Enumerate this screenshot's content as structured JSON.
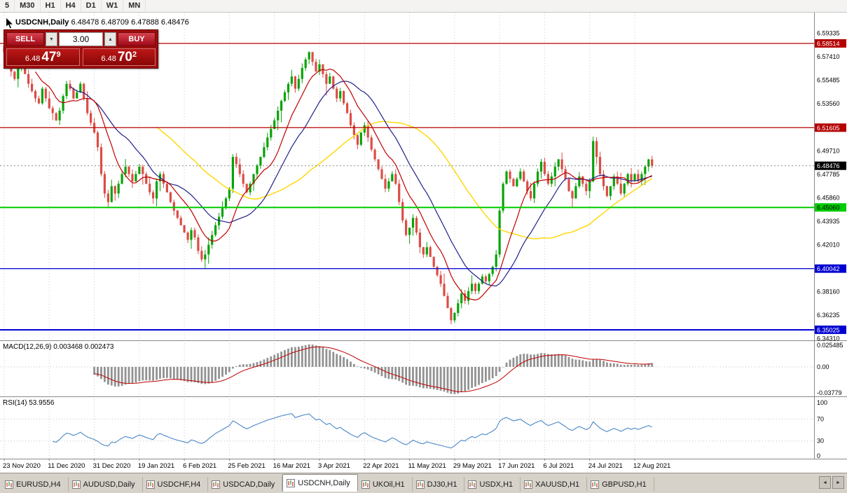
{
  "toolbar": {
    "timeframes": [
      {
        "label": "5"
      },
      {
        "label": "M30"
      },
      {
        "label": "H1"
      },
      {
        "label": "H4"
      },
      {
        "label": "D1"
      },
      {
        "label": "W1"
      },
      {
        "label": "MN"
      }
    ]
  },
  "chart": {
    "symbol_period": "USDCNH,Daily",
    "ohlc_readout": "6.48478 6.48709 6.47888 6.48476"
  },
  "one_click": {
    "sell_label": "SELL",
    "buy_label": "BUY",
    "volume": "3.00",
    "sell_price": {
      "base": "6.48",
      "pips": "47",
      "pt": "9"
    },
    "buy_price": {
      "base": "6.48",
      "pips": "70",
      "pt": "2"
    }
  },
  "chart_data": {
    "type": "candlestick",
    "symbol": "USDCNH",
    "timeframe": "Daily",
    "x_labels": [
      "23 Nov 2020",
      "11 Dec 2020",
      "31 Dec 2020",
      "19 Jan 2021",
      "6 Feb 2021",
      "25 Feb 2021",
      "16 Mar 2021",
      "3 Apr 2021",
      "22 Apr 2021",
      "11 May 2021",
      "29 May 2021",
      "17 Jun 2021",
      "6 Jul 2021",
      "24 Jul 2021",
      "12 Aug 2021"
    ],
    "label_step": 13,
    "open_first": 6.583,
    "closes": [
      6.578,
      6.585,
      6.562,
      6.556,
      6.568,
      6.572,
      6.56,
      6.552,
      6.546,
      6.54,
      6.536,
      6.548,
      6.54,
      6.532,
      6.528,
      6.522,
      6.53,
      6.542,
      6.552,
      6.548,
      6.54,
      6.545,
      6.552,
      6.54,
      6.528,
      6.52,
      6.512,
      6.5,
      6.478,
      6.462,
      6.455,
      6.468,
      6.462,
      6.47,
      6.478,
      6.484,
      6.478,
      6.472,
      6.478,
      6.484,
      6.478,
      6.47,
      6.463,
      6.458,
      6.472,
      6.478,
      6.47,
      6.463,
      6.455,
      6.448,
      6.442,
      6.436,
      6.43,
      6.424,
      6.432,
      6.426,
      6.415,
      6.408,
      6.412,
      6.42,
      6.428,
      6.436,
      6.443,
      6.45,
      6.458,
      6.466,
      6.492,
      6.486,
      6.478,
      6.47,
      6.463,
      6.47,
      6.478,
      6.485,
      6.492,
      6.5,
      6.508,
      6.515,
      6.522,
      6.53,
      6.538,
      6.545,
      6.552,
      6.558,
      6.548,
      6.556,
      6.565,
      6.572,
      6.578,
      6.57,
      6.562,
      6.568,
      6.56,
      6.552,
      6.558,
      6.548,
      6.54,
      6.546,
      6.536,
      6.528,
      6.518,
      6.51,
      6.502,
      6.512,
      6.518,
      6.508,
      6.498,
      6.49,
      6.482,
      6.474,
      6.466,
      6.472,
      6.478,
      6.47,
      6.455,
      6.44,
      6.428,
      6.434,
      6.442,
      6.43,
      6.418,
      6.412,
      6.418,
      6.41,
      6.402,
      6.395,
      6.388,
      6.378,
      6.368,
      6.358,
      6.364,
      6.372,
      6.38,
      6.374,
      6.382,
      6.388,
      6.382,
      6.388,
      6.394,
      6.39,
      6.396,
      6.402,
      6.412,
      6.448,
      6.47,
      6.48,
      6.474,
      6.468,
      6.474,
      6.48,
      6.472,
      6.464,
      6.458,
      6.47,
      6.48,
      6.488,
      6.478,
      6.47,
      6.476,
      6.484,
      6.49,
      6.482,
      6.474,
      6.464,
      6.458,
      6.468,
      6.476,
      6.47,
      6.464,
      6.472,
      6.505,
      6.492,
      6.478,
      6.468,
      6.46,
      6.468,
      6.476,
      6.47,
      6.462,
      6.47,
      6.478,
      6.472,
      6.478,
      6.472,
      6.478,
      6.484,
      6.49,
      6.48476
    ],
    "price_range": {
      "top": 6.6104,
      "bottom": 6.3416
    },
    "price_axis_ticks": [
      "6.59335",
      "6.57410",
      "6.55485",
      "6.53560",
      "6.51635",
      "6.49710",
      "6.47785",
      "6.45860",
      "6.43935",
      "6.42010",
      "6.40085",
      "6.38160",
      "6.36235",
      "6.34310"
    ],
    "levels": [
      {
        "value": 6.58514,
        "label": "6.58514",
        "color": "#B40000",
        "width": 1.2,
        "text": "#ffffff"
      },
      {
        "value": 6.51605,
        "label": "6.51605",
        "color": "#B40000",
        "width": 1.2,
        "text": "#ffffff"
      },
      {
        "value": 6.4506,
        "label": "6.45060",
        "color": "#00CC00",
        "width": 2,
        "text": "#000000"
      },
      {
        "value": 6.40042,
        "label": "6.40042",
        "color": "#0000D0",
        "width": 1.2,
        "text": "#ffffff"
      },
      {
        "value": 6.35025,
        "label": "6.35025",
        "color": "#0000D0",
        "width": 2,
        "text": "#ffffff"
      }
    ],
    "current_price": {
      "value": 6.48476,
      "label": "6.48476",
      "bg": "#000000",
      "text": "#ffffff"
    },
    "ma_periods": {
      "fast": 10,
      "mid": 20,
      "slow": 45
    },
    "macd": {
      "name": "MACD(12,26,9)",
      "value_main": "0.003468",
      "value_signal": "0.002473",
      "axis_top_label": "0.025485",
      "axis_zero_label": "0.00",
      "axis_bottom_label": "-0.03779",
      "fast": 12,
      "slow": 26,
      "signal": 9
    },
    "rsi": {
      "name": "RSI(14)",
      "value": "53.9556",
      "period": 14,
      "axis_labels": [
        "100",
        "70",
        "30",
        "0"
      ],
      "upper": 70,
      "lower": 30
    },
    "colors": {
      "bull": "#07A307",
      "bear": "#DB4D45",
      "ma_fast": "#C00000",
      "ma_mid": "#20208C",
      "ma_slow": "#FFD700",
      "macd_hist": "#929292",
      "macd_signal": "#C00000",
      "rsi": "#4A87C7",
      "grid": "#CCCCCC"
    }
  },
  "tabs": {
    "items": [
      {
        "label": "EURUSD,H4",
        "active": false
      },
      {
        "label": "AUDUSD,Daily",
        "active": false
      },
      {
        "label": "USDCHF,H4",
        "active": false
      },
      {
        "label": "USDCAD,Daily",
        "active": false
      },
      {
        "label": "USDCNH,Daily",
        "active": true
      },
      {
        "label": "UKOil,H1",
        "active": false
      },
      {
        "label": "DJ30,H1",
        "active": false
      },
      {
        "label": "USDX,H1",
        "active": false
      },
      {
        "label": "XAUUSD,H1",
        "active": false
      },
      {
        "label": "GBPUSD,H1",
        "active": false
      }
    ],
    "scroll_left": "◄",
    "scroll_right": "►"
  }
}
